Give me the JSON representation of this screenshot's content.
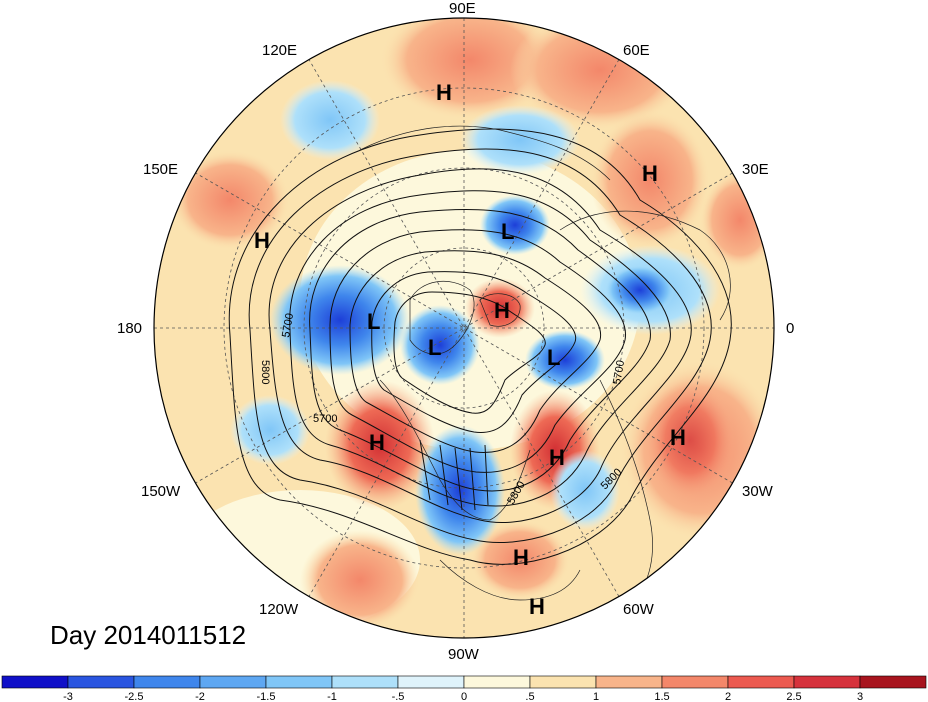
{
  "title": "Day 2014011512",
  "longitude_labels": [
    "90E",
    "60E",
    "30E",
    "0",
    "30W",
    "60W",
    "90W",
    "120W",
    "150W",
    "180",
    "150E",
    "120E"
  ],
  "pressure_centers": [
    {
      "type": "H"
    },
    {
      "type": "H"
    },
    {
      "type": "H"
    },
    {
      "type": "L"
    },
    {
      "type": "H"
    },
    {
      "type": "L"
    },
    {
      "type": "L"
    },
    {
      "type": "L"
    },
    {
      "type": "H"
    },
    {
      "type": "H"
    },
    {
      "type": "H"
    },
    {
      "type": "H"
    },
    {
      "type": "H"
    }
  ],
  "contour_labels": [
    "5700",
    "5800",
    "5700",
    "5700",
    "5800",
    "5800"
  ],
  "colorbar": {
    "ticks": [
      "-3",
      "-2.5",
      "-2",
      "-1.5",
      "-1",
      "-.5",
      "0",
      ".5",
      "1",
      "1.5",
      "2",
      "2.5",
      "3"
    ],
    "colors": [
      "#1010c8",
      "#2a55e0",
      "#3f86ec",
      "#5ea7f2",
      "#80c6f7",
      "#aee0fa",
      "#dff3fb",
      "#fdf8dc",
      "#fbe3b0",
      "#f8b48a",
      "#f3876a",
      "#ec5a50",
      "#d6323c",
      "#a8141e"
    ]
  }
}
